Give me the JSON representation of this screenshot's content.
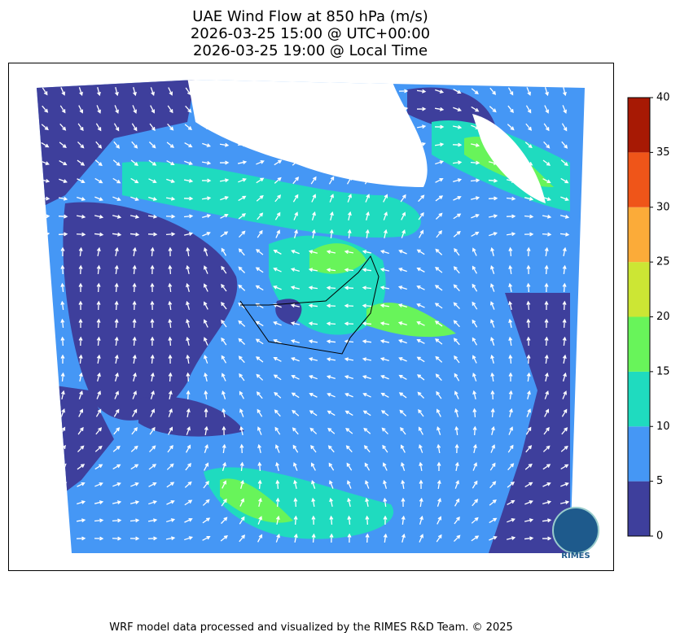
{
  "title": [
    "UAE Wind Flow at 850 hPa (m/s)",
    "2026-03-25 15:00 @ UTC+00:00",
    "2026-03-25 19:00 @ Local Time"
  ],
  "colorbar": {
    "lim": [
      0,
      40
    ],
    "ticks": [
      0,
      5,
      10,
      15,
      20,
      25,
      30,
      35,
      40
    ],
    "colors": [
      "#3e3f9c",
      "#4597f5",
      "#1fdbbf",
      "#68f45a",
      "#cce634",
      "#fbab39",
      "#ef5519",
      "#a71904"
    ]
  },
  "logo": "RIMES",
  "footer": "WRF model data processed and visualized by the RIMES R&D Team. © 2025"
}
